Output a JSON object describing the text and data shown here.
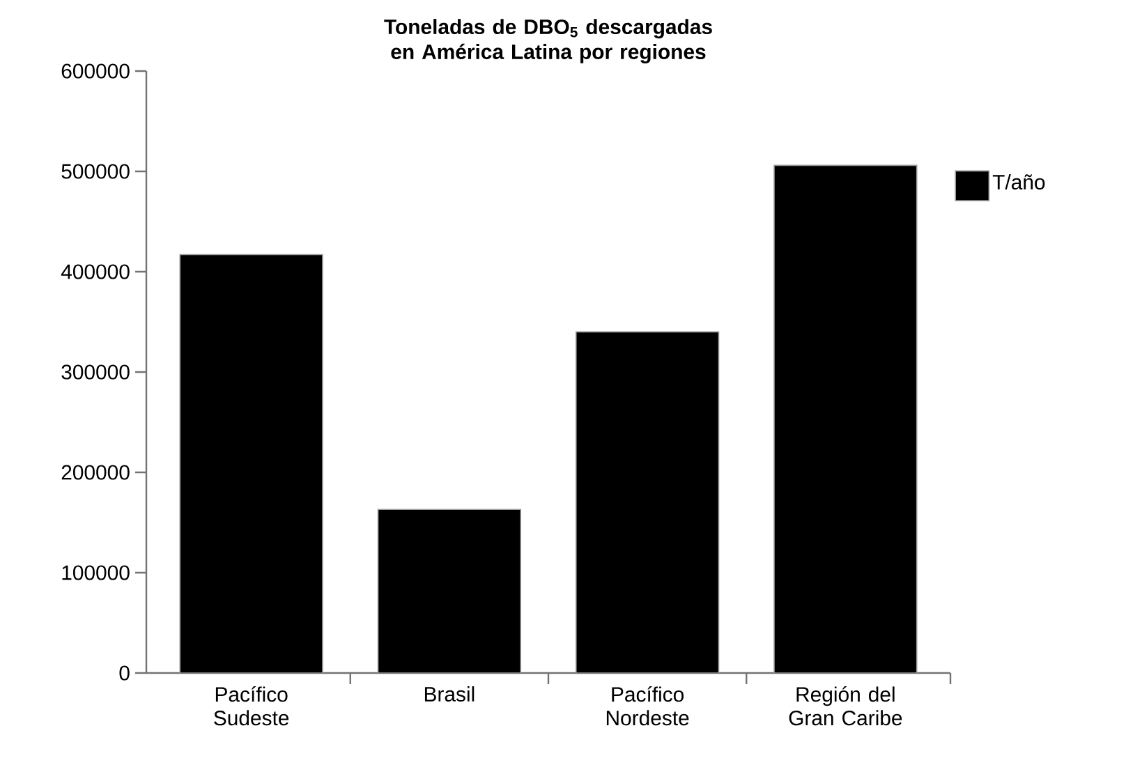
{
  "chart_data": {
    "type": "bar",
    "title": "Toneladas de DBO$_{5}$ descargadas en América Latina por regiones",
    "categories": [
      "Pacífico Sudeste",
      "Brasil",
      "Pacífico Nordeste",
      "Región del Gran Caribe"
    ],
    "series": [
      {
        "name": "T/año",
        "color": "#000000",
        "values": [
          417000,
          163000,
          340000,
          506000
        ]
      }
    ],
    "ylim": [
      0,
      600000
    ],
    "yticks": [
      0,
      100000,
      200000,
      300000,
      400000,
      500000,
      600000
    ],
    "grid": false,
    "legend": "top right"
  }
}
